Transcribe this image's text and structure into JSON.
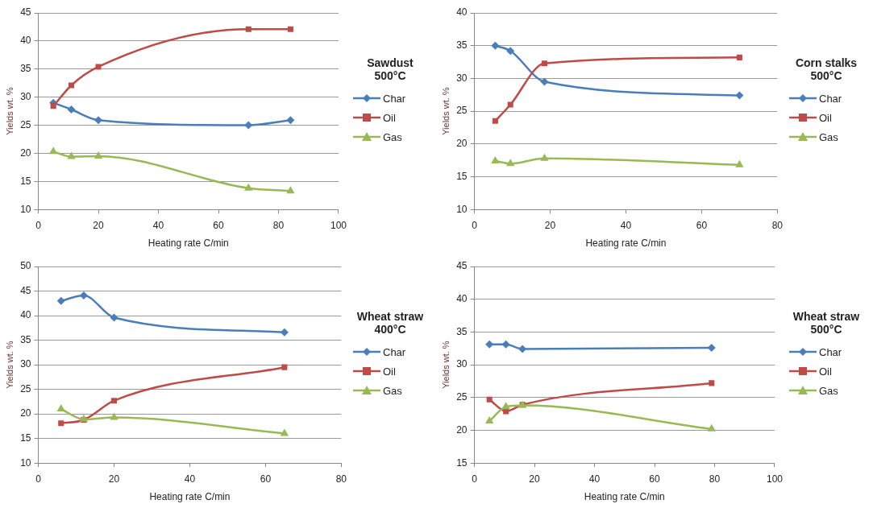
{
  "chart_data": [
    {
      "type": "line",
      "xlabel": "Heating rate C/min",
      "ylabel": "Yields wt. %",
      "legend_title": "Sawdust 500°C",
      "x": [
        5,
        11,
        20,
        70,
        84
      ],
      "xlim": [
        0,
        100
      ],
      "xticks": [
        0,
        20,
        40,
        60,
        80,
        100
      ],
      "ylim": [
        10,
        45
      ],
      "yticks": [
        10,
        15,
        20,
        25,
        30,
        35,
        40,
        45
      ],
      "grid": "y",
      "legend": "right",
      "series": [
        {
          "name": "Char",
          "color": "#4a7ebb",
          "marker": "diamond",
          "values": [
            29,
            27.8,
            25.9,
            25,
            25.9
          ]
        },
        {
          "name": "Oil",
          "color": "#be4b48",
          "marker": "square",
          "values": [
            28.4,
            32.1,
            35.4,
            42.1,
            42.1
          ]
        },
        {
          "name": "Gas",
          "color": "#98b954",
          "marker": "triangle",
          "values": [
            20.3,
            19.4,
            19.5,
            13.8,
            13.3
          ]
        }
      ]
    },
    {
      "type": "line",
      "xlabel": "Heating rate C/min",
      "ylabel": "Yields wt. %",
      "legend_title": "Corn stalks 500°C",
      "x": [
        5.5,
        9.5,
        18.5,
        70
      ],
      "xlim": [
        0,
        80
      ],
      "xticks": [
        0,
        20,
        40,
        60,
        80
      ],
      "ylim": [
        10,
        40
      ],
      "yticks": [
        10,
        15,
        20,
        25,
        30,
        35,
        40
      ],
      "grid": "y",
      "legend": "right",
      "series": [
        {
          "name": "Char",
          "color": "#4a7ebb",
          "marker": "diamond",
          "values": [
            35,
            34.2,
            29.5,
            27.4
          ]
        },
        {
          "name": "Oil",
          "color": "#be4b48",
          "marker": "square",
          "values": [
            23.5,
            26,
            32.3,
            33.2
          ]
        },
        {
          "name": "Gas",
          "color": "#98b954",
          "marker": "triangle",
          "values": [
            17.4,
            17,
            17.8,
            16.8
          ]
        }
      ]
    },
    {
      "type": "line",
      "xlabel": "Heating rate C/min",
      "ylabel": "Yields wt. %",
      "legend_title": "Wheat straw 400°C",
      "x": [
        6,
        12,
        20,
        65
      ],
      "xlim": [
        0,
        80
      ],
      "xticks": [
        0,
        20,
        40,
        60,
        80
      ],
      "ylim": [
        10,
        50
      ],
      "yticks": [
        10,
        15,
        20,
        25,
        30,
        35,
        40,
        45,
        50
      ],
      "grid": "y",
      "legend": "right",
      "series": [
        {
          "name": "Char",
          "color": "#4a7ebb",
          "marker": "diamond",
          "values": [
            43,
            44.1,
            39.6,
            36.6
          ]
        },
        {
          "name": "Oil",
          "color": "#be4b48",
          "marker": "square",
          "values": [
            18.1,
            18.8,
            22.7,
            29.5
          ]
        },
        {
          "name": "Gas",
          "color": "#98b954",
          "marker": "triangle",
          "values": [
            21,
            18.9,
            19.3,
            16
          ]
        }
      ]
    },
    {
      "type": "line",
      "xlabel": "Heating rate C/min",
      "ylabel": "Yields wt. %",
      "legend_title": "Wheat straw 500°C",
      "x": [
        5,
        10.5,
        16,
        79
      ],
      "xlim": [
        0,
        100
      ],
      "xticks": [
        0,
        20,
        40,
        60,
        80,
        100
      ],
      "ylim": [
        15,
        45
      ],
      "yticks": [
        15,
        20,
        25,
        30,
        35,
        40,
        45
      ],
      "grid": "y",
      "legend": "right",
      "series": [
        {
          "name": "Char",
          "color": "#4a7ebb",
          "marker": "diamond",
          "values": [
            33.1,
            33.1,
            32.4,
            32.6
          ]
        },
        {
          "name": "Oil",
          "color": "#be4b48",
          "marker": "square",
          "values": [
            24.7,
            22.9,
            23.9,
            27.2
          ]
        },
        {
          "name": "Gas",
          "color": "#98b954",
          "marker": "triangle",
          "values": [
            21.4,
            23.6,
            23.8,
            20.2
          ]
        }
      ]
    }
  ]
}
